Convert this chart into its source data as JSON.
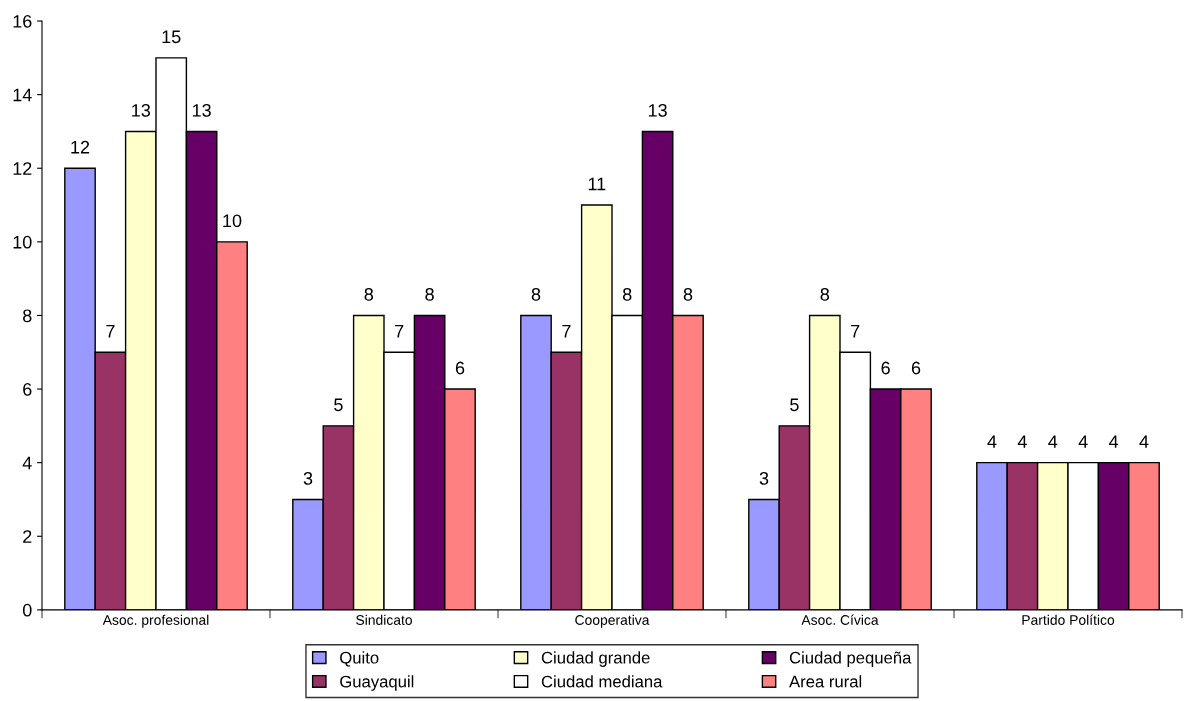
{
  "chart_data": {
    "type": "bar",
    "categories": [
      "Asoc. profesional",
      "Sindicato",
      "Cooperativa",
      "Asoc. Cívica",
      "Partido Político"
    ],
    "series": [
      {
        "name": "Quito",
        "color": "#9999ff",
        "values": [
          12,
          3,
          8,
          3,
          4
        ]
      },
      {
        "name": "Guayaquil",
        "color": "#993366",
        "values": [
          7,
          5,
          7,
          5,
          4
        ]
      },
      {
        "name": "Ciudad grande",
        "color": "#ffffcc",
        "values": [
          13,
          8,
          11,
          8,
          4
        ]
      },
      {
        "name": "Ciudad mediana",
        "color": "#ffffff",
        "values": [
          15,
          7,
          8,
          7,
          4
        ]
      },
      {
        "name": "Ciudad pequeña",
        "color": "#660066",
        "values": [
          13,
          8,
          13,
          6,
          4
        ]
      },
      {
        "name": "Area rural",
        "color": "#ff8080",
        "values": [
          10,
          6,
          8,
          6,
          4
        ]
      }
    ],
    "ylim": [
      0,
      16
    ],
    "yticks": [
      0,
      2,
      4,
      6,
      8,
      10,
      12,
      14,
      16
    ],
    "data_labels": true,
    "grid": false,
    "legend": "bottom"
  }
}
